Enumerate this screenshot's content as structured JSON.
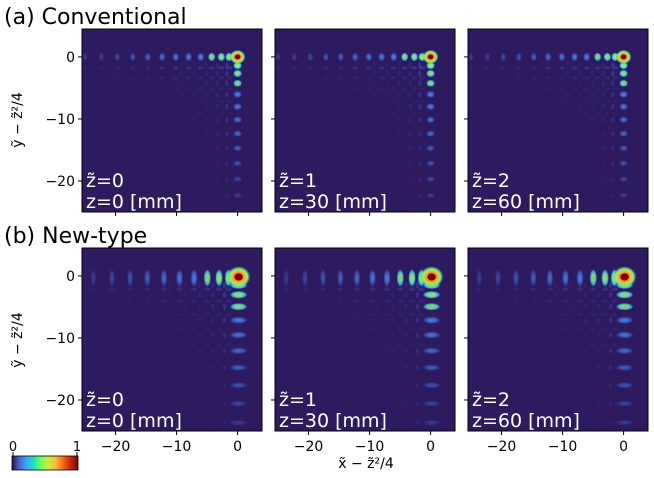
{
  "rows": [
    {
      "label": "(a) Conventional",
      "panels": [
        {
          "ztilde": "z̃=0",
          "z": "z=0 [mm]"
        },
        {
          "ztilde": "z̃=1",
          "z": "z=30 [mm]"
        },
        {
          "ztilde": "z̃=2",
          "z": "z=60 [mm]"
        }
      ]
    },
    {
      "label": "(b) New-type",
      "panels": [
        {
          "ztilde": "z̃=0",
          "z": "z=0 [mm]"
        },
        {
          "ztilde": "z̃=1",
          "z": "z=30 [mm]"
        },
        {
          "ztilde": "z̃=2",
          "z": "z=60 [mm]"
        }
      ]
    }
  ],
  "axes": {
    "ylabel": "ỹ − z̃²/4",
    "xlabel": "x̃ − z̃²/4",
    "xticks": [
      "−20",
      "−10",
      "0"
    ],
    "yticks": [
      "0",
      "−10",
      "−20"
    ]
  },
  "colorbar": {
    "min": "0",
    "max": "1"
  },
  "colors": {
    "background": "#2d1a5f",
    "colormap": [
      "#30123b",
      "#4662d7",
      "#36aaf9",
      "#1ae4b6",
      "#72fe5e",
      "#c7ef34",
      "#faba39",
      "#f66b19",
      "#ca2a04",
      "#7a0403"
    ]
  }
}
